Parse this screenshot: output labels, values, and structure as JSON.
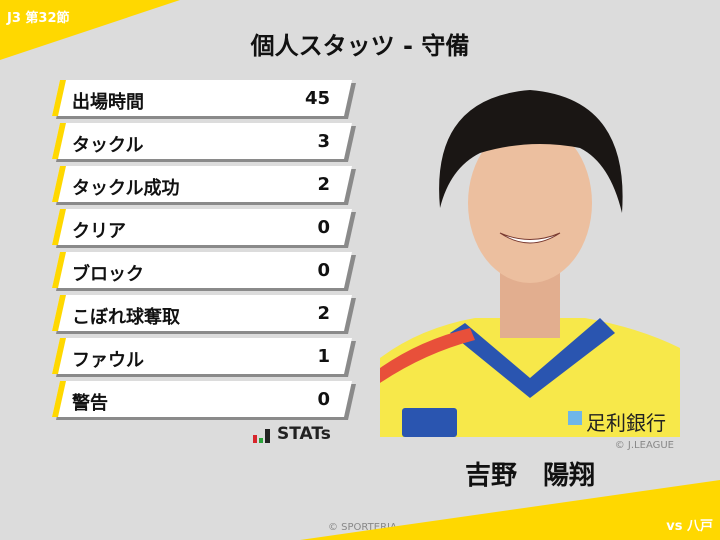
{
  "header": {
    "round": "J3 第32節",
    "title": "個人スタッツ - 守備",
    "opponent": "vs 八戸"
  },
  "stats": [
    {
      "label": "出場時間",
      "value": "45"
    },
    {
      "label": "タックル",
      "value": "3"
    },
    {
      "label": "タックル成功",
      "value": "2"
    },
    {
      "label": "クリア",
      "value": "0"
    },
    {
      "label": "ブロック",
      "value": "0"
    },
    {
      "label": "こぼれ球奪取",
      "value": "2"
    },
    {
      "label": "ファウル",
      "value": "1"
    },
    {
      "label": "警告",
      "value": "0"
    }
  ],
  "logo": {
    "text": "STATs"
  },
  "player": {
    "name": "吉野　陽翔",
    "photo_credit": "© J.LEAGUE",
    "sponsor": "足利銀行"
  },
  "footer": {
    "credit": "© SPORTERIA"
  },
  "colors": {
    "accent": "#ffd800",
    "background": "#dcdcdc",
    "jersey": "#f7e84a",
    "collar": "#2a55b0"
  }
}
